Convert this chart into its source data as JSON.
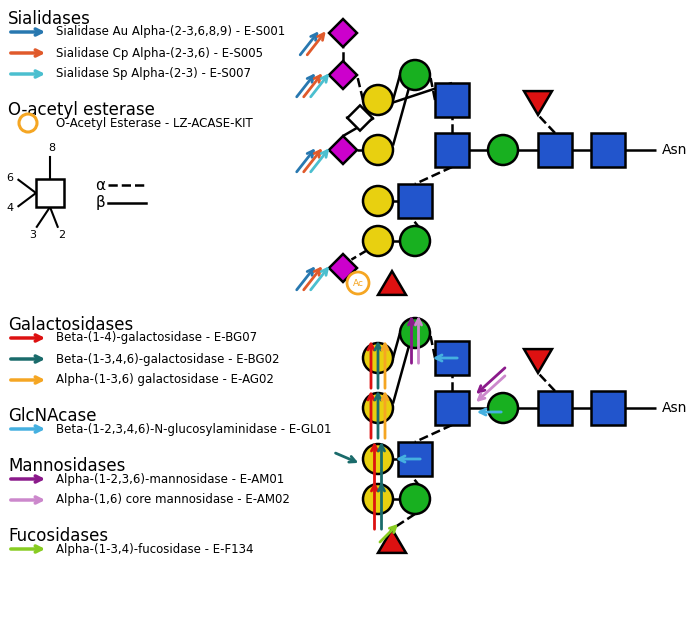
{
  "bg_color": "#ffffff",
  "colors": {
    "blue": "#2255cc",
    "green": "#18b020",
    "yellow": "#e8d010",
    "magenta": "#cc00cc",
    "red": "#dd1111",
    "teal_dark": "#2878b0",
    "orange_red": "#e05a2b",
    "cyan_light": "#4bbfcf",
    "red_gal": "#dd1111",
    "teal_gal": "#1a6b6b",
    "orange_gal": "#f5a623",
    "cyan_glc": "#45b0e0",
    "purple_man": "#8b1a8b",
    "lavender_man": "#cc88cc",
    "green_fuc": "#88cc22"
  },
  "legend_top": {
    "heading1": "Sialidases",
    "items1": [
      {
        "color": "#2878b0",
        "label": "Sialidase Au Alpha-(2-3,6,8,9) - E-S001"
      },
      {
        "color": "#e05a2b",
        "label": "Sialidase Cp Alpha-(2-3,6) - E-S005"
      },
      {
        "color": "#4bbfcf",
        "label": "Sialidase Sp Alpha-(2-3) - E-S007"
      }
    ],
    "heading2": "O-acetyl esterase",
    "items2": [
      {
        "color": "#f5a623",
        "label": "O-Acetyl Esterase - LZ-ACASE-KIT"
      }
    ]
  },
  "legend_bottom": {
    "heading1": "Galactosidases",
    "items1": [
      {
        "color": "#dd1111",
        "label": "Beta-(1-4)-galactosidase - E-BG07"
      },
      {
        "color": "#1a6b6b",
        "label": "Beta-(1-3,4,6)-galactosidase - E-BG02"
      },
      {
        "color": "#f5a623",
        "label": "Alpha-(1-3,6) galactosidase - E-AG02"
      }
    ],
    "heading2": "GlcNAcase",
    "items2": [
      {
        "color": "#45b0e0",
        "label": "Beta-(1-2,3,4,6)-N-glucosylaminidase - E-GL01"
      }
    ],
    "heading3": "Mannosidases",
    "items3": [
      {
        "color": "#8b1a8b",
        "label": "Alpha-(1-2,3,6)-mannosidase - E-AM01"
      },
      {
        "color": "#cc88cc",
        "label": "Alpha-(1,6) core mannosidase - E-AM02"
      }
    ],
    "heading4": "Fucosidases",
    "items4": [
      {
        "color": "#88cc22",
        "label": "Alpha-(1-3,4)-fucosidase - E-F134"
      }
    ]
  }
}
